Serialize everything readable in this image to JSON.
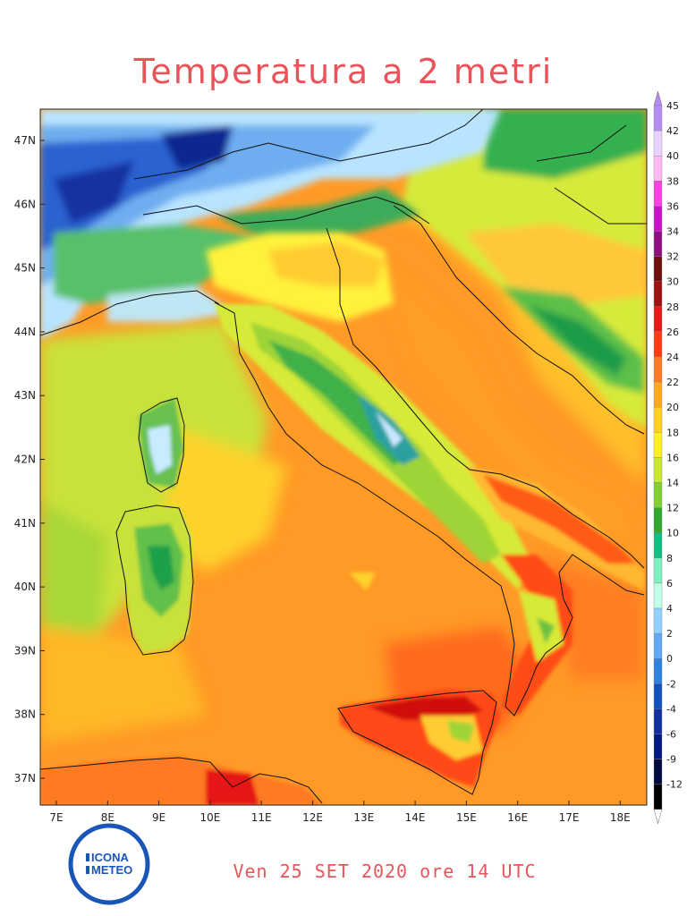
{
  "title": "Temperatura a 2 metri",
  "footer": "Ven 25 SET 2020 ore 14 UTC",
  "logo": {
    "line1": "ICONA",
    "line2": "METEO"
  },
  "lat_labels": [
    "47N",
    "46N",
    "45N",
    "44N",
    "43N",
    "42N",
    "41N",
    "40N",
    "39N",
    "38N",
    "37N"
  ],
  "lon_labels": [
    "7E",
    "8E",
    "9E",
    "10E",
    "11E",
    "12E",
    "13E",
    "14E",
    "15E",
    "16E",
    "17E",
    "18E"
  ],
  "colorbar": {
    "labels": [
      "45",
      "42",
      "40",
      "38",
      "36",
      "34",
      "32",
      "30",
      "28",
      "26",
      "24",
      "22",
      "20",
      "18",
      "16",
      "14",
      "12",
      "10",
      "8",
      "6",
      "4",
      "2",
      "0",
      "-2",
      "-4",
      "-6",
      "-9",
      "-12"
    ],
    "colors": [
      "#b58cf0",
      "#e8d2ff",
      "#ffb8f0",
      "#ff40e0",
      "#cc10c8",
      "#8c1080",
      "#6c1010",
      "#a01010",
      "#e61818",
      "#ff3a10",
      "#ff7a20",
      "#ffa820",
      "#ffd020",
      "#fff020",
      "#c8e830",
      "#80d030",
      "#30a830",
      "#10c080",
      "#80f0c0",
      "#c0ffe8",
      "#90d0ff",
      "#60a8f0",
      "#3080e0",
      "#1050c0",
      "#1030a0",
      "#001880",
      "#000840",
      "#000000"
    ]
  }
}
